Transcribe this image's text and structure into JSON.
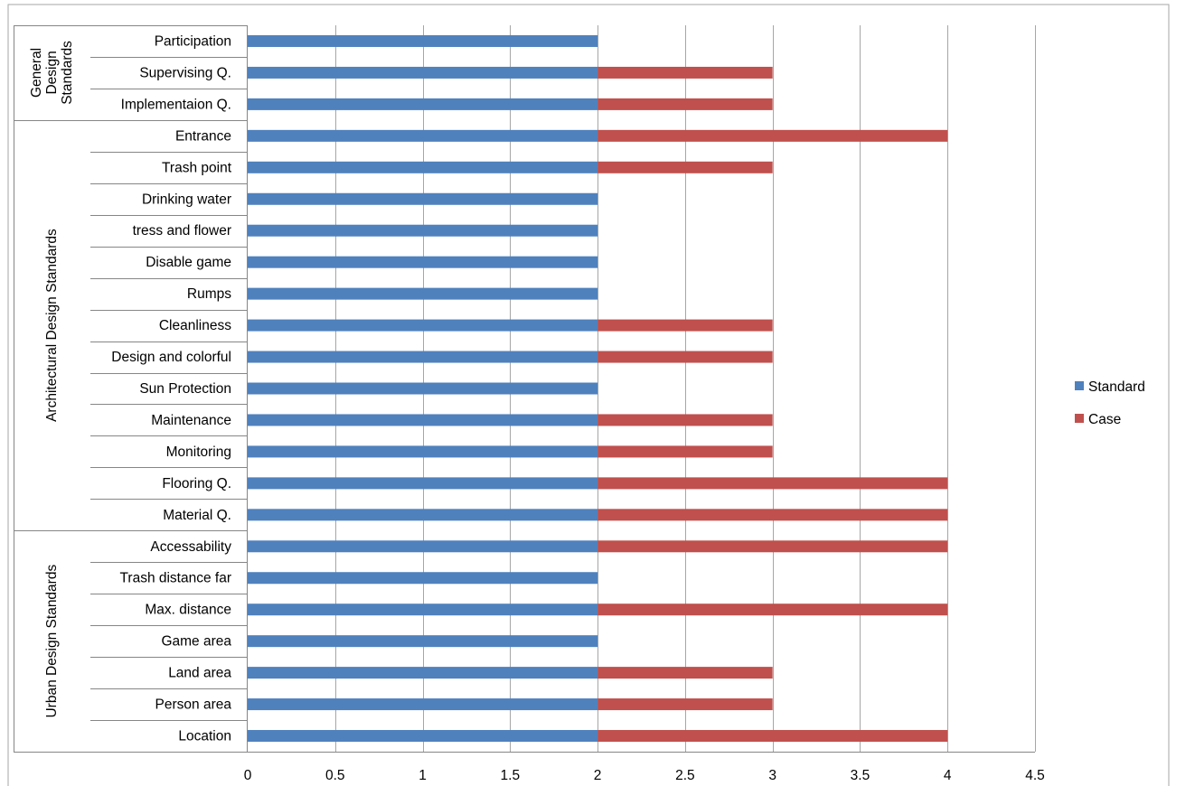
{
  "chart_data": {
    "type": "bar",
    "orientation": "horizontal",
    "stacked": true,
    "title": "",
    "xlabel": "",
    "ylabel": "",
    "xlim": [
      0,
      4.5
    ],
    "x_ticks": [
      0,
      0.5,
      1,
      1.5,
      2,
      2.5,
      3,
      3.5,
      4,
      4.5
    ],
    "x_tick_labels": [
      "0",
      "0.5",
      "1",
      "1.5",
      "2",
      "2.5",
      "3",
      "3.5",
      "4",
      "4.5"
    ],
    "grid": "vertical",
    "legend_position": "right",
    "categories": [
      "Participation",
      "Supervising Q.",
      "Implementaion Q.",
      "Entrance",
      "Trash point",
      "Drinking water",
      "tress and flower",
      "Disable game",
      "Rumps",
      "Cleanliness",
      "Design and colorful",
      "Sun Protection",
      "Maintenance",
      "Monitoring",
      "Flooring Q.",
      "Material Q.",
      "Accessability",
      "Trash distance far",
      "Max. distance",
      "Game area",
      "Land area",
      "Person area",
      "Location"
    ],
    "groups": [
      {
        "name": "General Design Standards",
        "lines": [
          "General",
          "Design",
          "Standards"
        ],
        "count": 3
      },
      {
        "name": "Architectural Design Standards",
        "lines": [
          "Architectural Design Standards"
        ],
        "count": 13
      },
      {
        "name": "Urban Design Standards",
        "lines": [
          "Urban Design Standards"
        ],
        "count": 7
      }
    ],
    "series": [
      {
        "name": "Standard",
        "color": "#4f81bd",
        "values": [
          2,
          2,
          2,
          2,
          2,
          2,
          2,
          2,
          2,
          2,
          2,
          2,
          2,
          2,
          2,
          2,
          2,
          2,
          2,
          2,
          2,
          2,
          2
        ]
      },
      {
        "name": "Case",
        "color": "#c0504d",
        "values": [
          0,
          1,
          1,
          2,
          1,
          0,
          0,
          0,
          0,
          1,
          1,
          0,
          1,
          1,
          2,
          2,
          2,
          0,
          2,
          0,
          1,
          1,
          2
        ]
      }
    ]
  }
}
